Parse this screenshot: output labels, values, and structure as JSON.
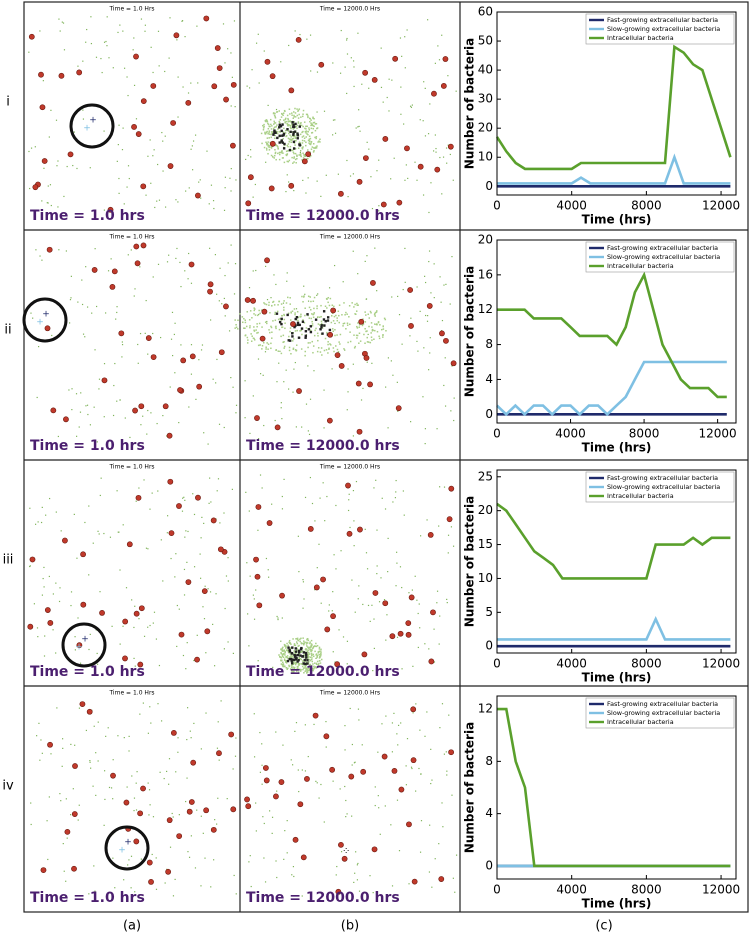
{
  "rows": [
    {
      "label": "i",
      "panels": [
        {
          "header": "Time = 1.0 Hrs",
          "caption": "Time = 1.0 hrs"
        },
        {
          "header": "Time = 12000.0 Hrs",
          "caption": "Time = 12000.0 hrs"
        }
      ]
    },
    {
      "label": "ii",
      "panels": [
        {
          "header": "Time = 1.0 Hrs",
          "caption": "Time = 1.0 hrs"
        },
        {
          "header": "Time = 12000.0 Hrs",
          "caption": "Time = 12000.0 hrs"
        }
      ]
    },
    {
      "label": "iii",
      "panels": [
        {
          "header": "Time = 1.0 Hrs",
          "caption": "Time = 1.0 hrs"
        },
        {
          "header": "Time = 12000.0 Hrs",
          "caption": "Time = 12000.0 hrs"
        }
      ]
    },
    {
      "label": "iv",
      "panels": [
        {
          "header": "Time = 1.0 Hrs",
          "caption": "Time = 1.0 hrs"
        },
        {
          "header": "Time = 12000.0 Hrs",
          "caption": "Time = 12000.0 hrs"
        }
      ]
    }
  ],
  "column_labels": [
    "(a)",
    "(b)",
    "(c)"
  ],
  "chart_data": [
    {
      "type": "line",
      "x_label": "Time (hrs)",
      "y_label": "Number of bacteria",
      "x": [
        0,
        500,
        1000,
        1500,
        2000,
        2500,
        3000,
        3500,
        4000,
        4500,
        5000,
        5500,
        6000,
        6500,
        7000,
        7500,
        8000,
        8500,
        9000,
        9500,
        10000,
        10500,
        11000,
        11500,
        12000,
        12500
      ],
      "xlim": [
        0,
        12800
      ],
      "xticks": [
        0,
        4000,
        8000,
        12000
      ],
      "ylim": [
        -3,
        60
      ],
      "yticks": [
        0,
        10,
        20,
        30,
        40,
        50,
        60
      ],
      "legend": "upper right",
      "series": [
        {
          "name": "Fast-growing extracellular bacteria",
          "color": "#1f2a6b",
          "values": [
            0,
            0,
            0,
            0,
            0,
            0,
            0,
            0,
            0,
            0,
            0,
            0,
            0,
            0,
            0,
            0,
            0,
            0,
            0,
            0,
            0,
            0,
            0,
            0,
            0,
            0
          ]
        },
        {
          "name": "Slow-growing extracellular bacteria",
          "color": "#7fc0e3",
          "values": [
            1,
            1,
            1,
            1,
            1,
            1,
            1,
            1,
            1,
            3,
            1,
            1,
            1,
            1,
            1,
            1,
            1,
            1,
            1,
            10,
            1,
            1,
            1,
            1,
            1,
            1
          ]
        },
        {
          "name": "Intracellular bacteria",
          "color": "#5aa02c",
          "values": [
            17,
            12,
            8,
            6,
            6,
            6,
            6,
            6,
            6,
            8,
            8,
            8,
            8,
            8,
            8,
            8,
            8,
            8,
            8,
            48,
            46,
            42,
            40,
            30,
            20,
            10
          ]
        }
      ]
    },
    {
      "type": "line",
      "x_label": "Time (hrs)",
      "y_label": "Number of bacteria",
      "x": [
        0,
        500,
        1000,
        1500,
        2000,
        2500,
        3000,
        3500,
        4000,
        4500,
        5000,
        5500,
        6000,
        6500,
        7000,
        7500,
        8000,
        8500,
        9000,
        9500,
        10000,
        10500,
        11000,
        11500,
        12000,
        12500
      ],
      "xlim": [
        0,
        13000
      ],
      "xticks": [
        0,
        4000,
        8000,
        12000
      ],
      "ylim": [
        -1,
        20
      ],
      "yticks": [
        0,
        4,
        8,
        12,
        16,
        20
      ],
      "legend": "upper right",
      "series": [
        {
          "name": "Fast-growing extracellular bacteria",
          "color": "#1f2a6b",
          "values": [
            0,
            0,
            0,
            0,
            0,
            0,
            0,
            0,
            0,
            0,
            0,
            0,
            0,
            0,
            0,
            0,
            0,
            0,
            0,
            0,
            0,
            0,
            0,
            0,
            0,
            0
          ]
        },
        {
          "name": "Slow-growing extracellular bacteria",
          "color": "#7fc0e3",
          "values": [
            1,
            0,
            1,
            0,
            1,
            1,
            0,
            1,
            1,
            0,
            1,
            1,
            0,
            1,
            2,
            4,
            6,
            6,
            6,
            6,
            6,
            6,
            6,
            6,
            6,
            6
          ]
        },
        {
          "name": "Intracellular bacteria",
          "color": "#5aa02c",
          "values": [
            12,
            12,
            12,
            12,
            11,
            11,
            11,
            11,
            10,
            9,
            9,
            9,
            9,
            8,
            10,
            14,
            16,
            12,
            8,
            6,
            4,
            3,
            3,
            3,
            2,
            2
          ]
        }
      ]
    },
    {
      "type": "line",
      "x_label": "Time (hrs)",
      "y_label": "Number of bacteria",
      "x": [
        0,
        500,
        1000,
        1500,
        2000,
        2500,
        3000,
        3500,
        4000,
        4500,
        5000,
        5500,
        6000,
        6500,
        7000,
        7500,
        8000,
        8500,
        9000,
        9500,
        10000,
        10500,
        11000,
        11500,
        12000,
        12500
      ],
      "xlim": [
        0,
        12800
      ],
      "xticks": [
        0,
        4000,
        8000,
        12000
      ],
      "ylim": [
        -1,
        26
      ],
      "yticks": [
        0,
        5,
        10,
        15,
        20,
        25
      ],
      "legend": "upper right",
      "series": [
        {
          "name": "Fast-growing extracellular bacteria",
          "color": "#1f2a6b",
          "values": [
            0,
            0,
            0,
            0,
            0,
            0,
            0,
            0,
            0,
            0,
            0,
            0,
            0,
            0,
            0,
            0,
            0,
            0,
            0,
            0,
            0,
            0,
            0,
            0,
            0,
            0
          ]
        },
        {
          "name": "Slow-growing extracellular bacteria",
          "color": "#7fc0e3",
          "values": [
            1,
            1,
            1,
            1,
            1,
            1,
            1,
            1,
            1,
            1,
            1,
            1,
            1,
            1,
            1,
            1,
            1,
            4,
            1,
            1,
            1,
            1,
            1,
            1,
            1,
            1
          ]
        },
        {
          "name": "Intracellular bacteria",
          "color": "#5aa02c",
          "values": [
            21,
            20,
            18,
            16,
            14,
            13,
            12,
            10,
            10,
            10,
            10,
            10,
            10,
            10,
            10,
            10,
            10,
            15,
            15,
            15,
            15,
            16,
            15,
            16,
            16,
            16
          ]
        }
      ]
    },
    {
      "type": "line",
      "x_label": "Time (hrs)",
      "y_label": "Number of bacteria",
      "x": [
        0,
        500,
        1000,
        1500,
        2000,
        2500,
        3000,
        3500,
        4000,
        4500,
        5000,
        5500,
        6000,
        6500,
        7000,
        7500,
        8000,
        8500,
        9000,
        9500,
        10000,
        10500,
        11000,
        11500,
        12000,
        12500
      ],
      "xlim": [
        0,
        12800
      ],
      "xticks": [
        0,
        4000,
        8000,
        12000
      ],
      "ylim": [
        -1,
        13
      ],
      "yticks": [
        0,
        4,
        8,
        12
      ],
      "legend": "upper right",
      "series": [
        {
          "name": "Fast-growing extracellular bacteria",
          "color": "#1f2a6b",
          "values": [
            0,
            0,
            0,
            0,
            0,
            0,
            0,
            0,
            0,
            0,
            0,
            0,
            0,
            0,
            0,
            0,
            0,
            0,
            0,
            0,
            0,
            0,
            0,
            0,
            0,
            0
          ]
        },
        {
          "name": "Slow-growing extracellular bacteria",
          "color": "#7fc0e3",
          "values": [
            0,
            0,
            0,
            0,
            0,
            0,
            0,
            0,
            0,
            0,
            0,
            0,
            0,
            0,
            0,
            0,
            0,
            0,
            0,
            0,
            0,
            0,
            0,
            0,
            0,
            0
          ]
        },
        {
          "name": "Intracellular bacteria",
          "color": "#5aa02c",
          "values": [
            12,
            12,
            8,
            6,
            0,
            0,
            0,
            0,
            0,
            0,
            0,
            0,
            0,
            0,
            0,
            0,
            0,
            0,
            0,
            0,
            0,
            0,
            0,
            0,
            0,
            0
          ]
        }
      ]
    }
  ]
}
